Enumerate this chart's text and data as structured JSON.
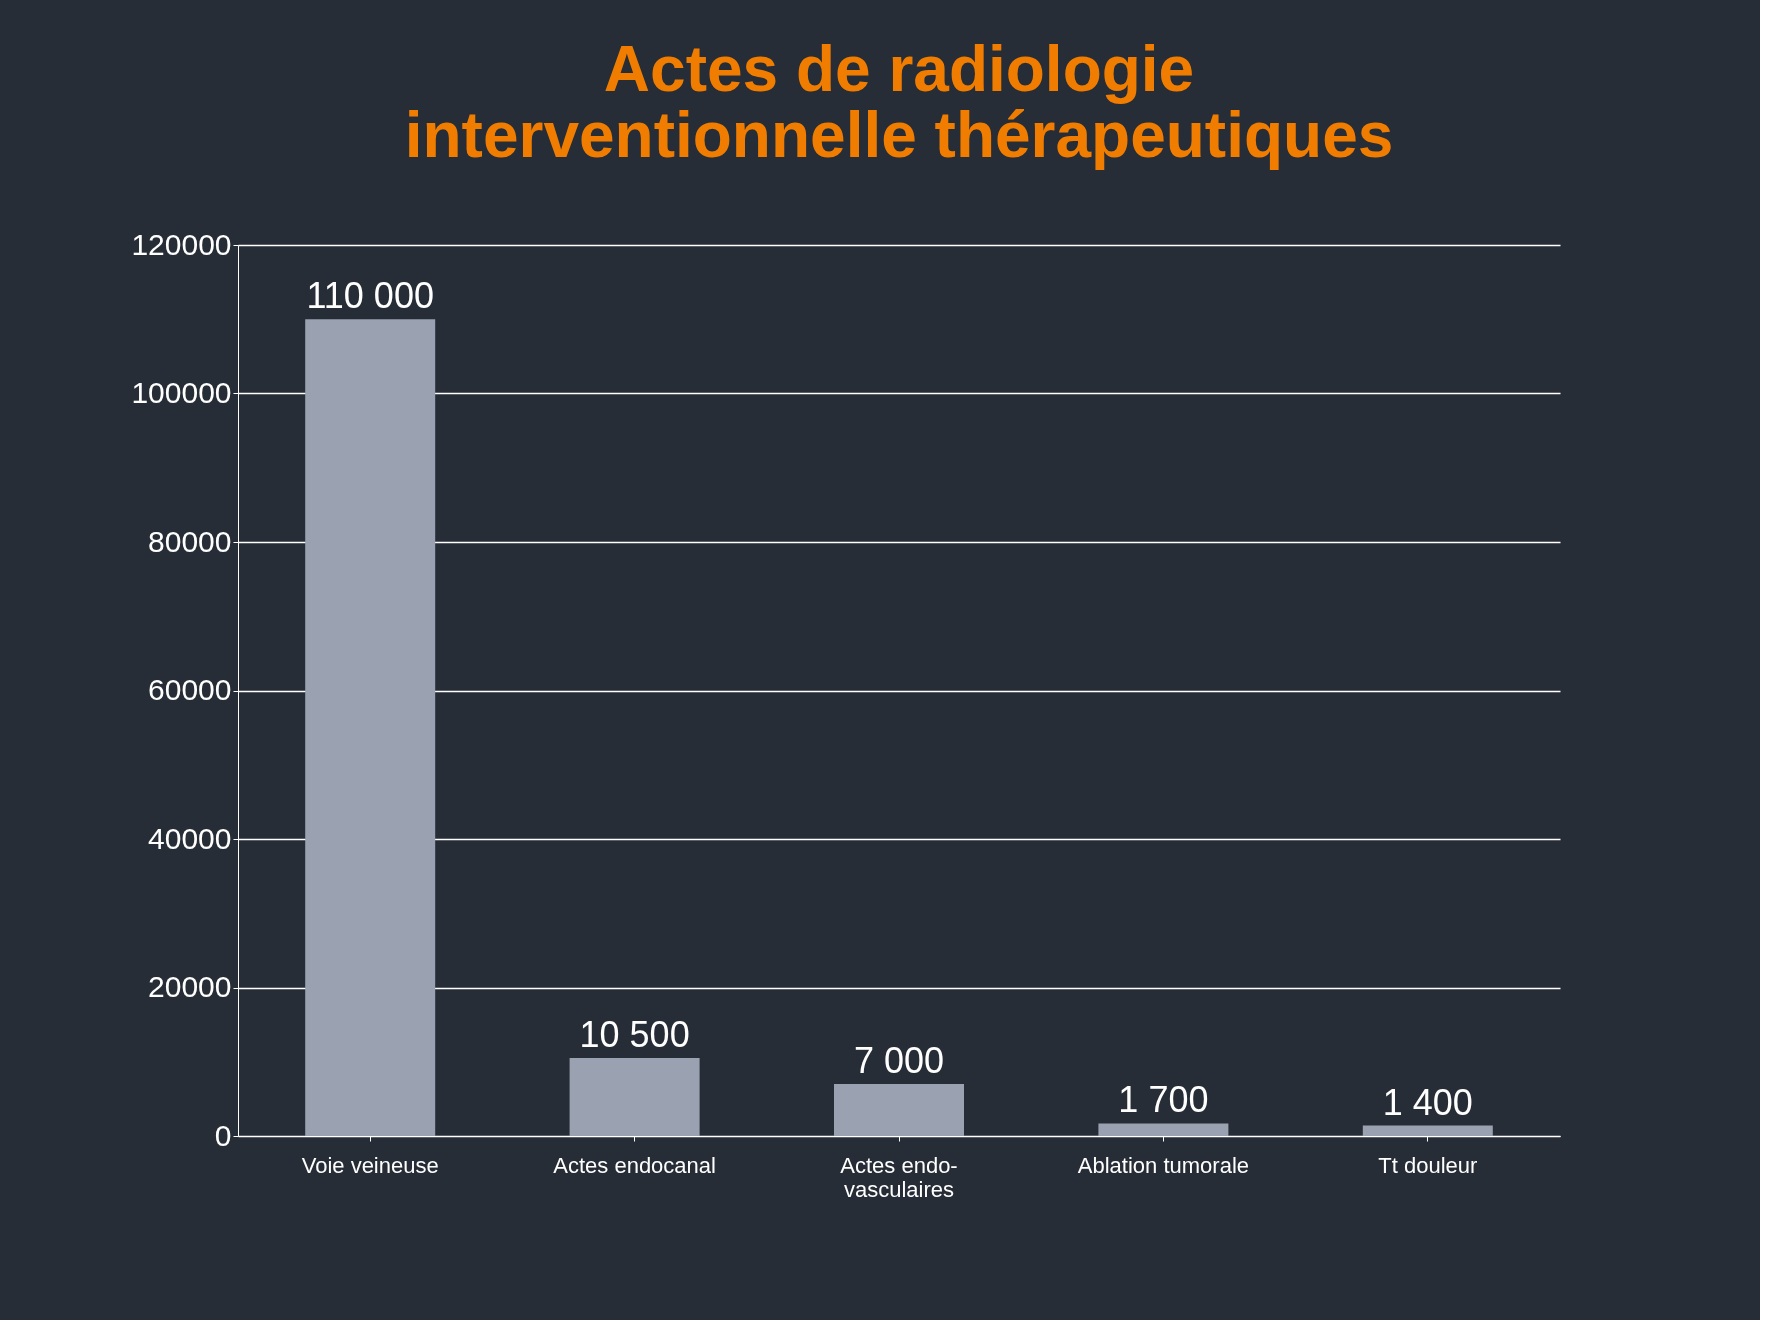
{
  "chart_data": {
    "type": "bar",
    "title": "Actes de radiologie interventionnelle thérapeutiques",
    "categories": [
      "Voie veineuse",
      "Actes endocanal",
      "Actes endo-vasculaires",
      "Ablation tumorale",
      "Tt douleur"
    ],
    "values": [
      110000,
      10500,
      7000,
      1700,
      1400
    ],
    "value_labels": [
      "110 000",
      "10 500",
      "7 000",
      "1 700",
      "1 400"
    ],
    "color": "#9aa1b0",
    "ylim": [
      0,
      120000
    ],
    "yticks": [
      0,
      20000,
      40000,
      60000,
      80000,
      100000,
      120000
    ],
    "grid": "y"
  }
}
